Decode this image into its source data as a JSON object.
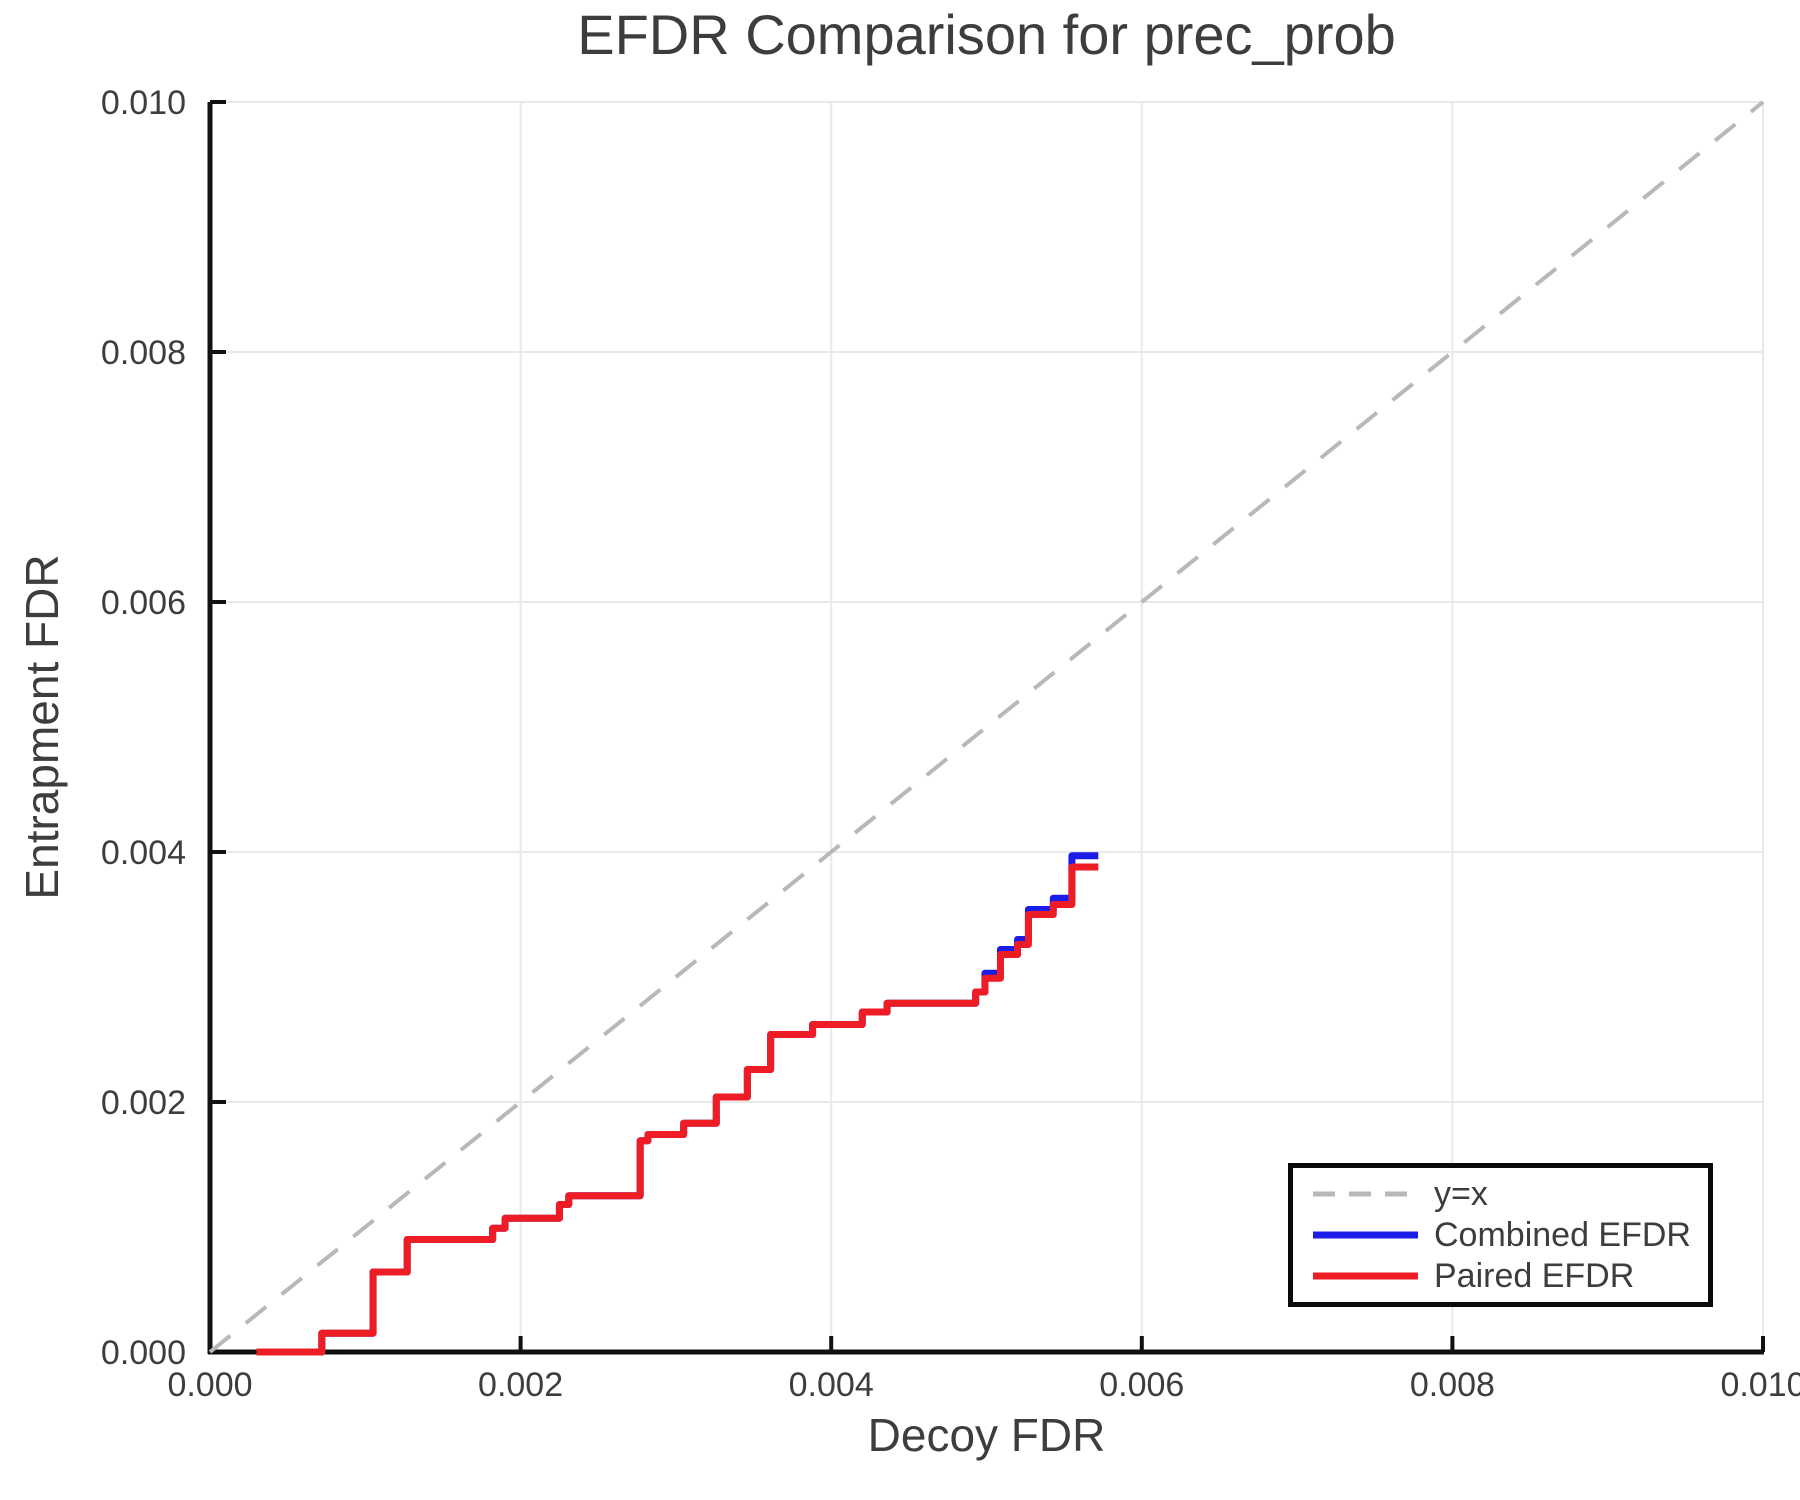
{
  "chart_data": {
    "type": "line",
    "title": "EFDR Comparison for prec_prob",
    "xlabel": "Decoy FDR",
    "ylabel": "Entrapment FDR",
    "xlim": [
      0.0,
      0.01
    ],
    "ylim": [
      0.0,
      0.01
    ],
    "grid": true,
    "xticks": {
      "values": [
        0.0,
        0.002,
        0.004,
        0.006,
        0.008,
        0.01
      ],
      "labels": [
        "0.000",
        "0.002",
        "0.004",
        "0.006",
        "0.008",
        "0.010"
      ]
    },
    "yticks": {
      "values": [
        0.0,
        0.002,
        0.004,
        0.006,
        0.008,
        0.01
      ],
      "labels": [
        "0.000",
        "0.002",
        "0.004",
        "0.006",
        "0.008",
        "0.010"
      ]
    },
    "colors": {
      "identity_line": "#b8b8b8",
      "combined": "#1c1ce8",
      "paired": "#ee1c24",
      "gridline": "#e9e9e9",
      "spine": "#111111",
      "text": "#3d3d3d"
    },
    "legend": {
      "position": "lower right",
      "items": [
        {
          "label": "y=x",
          "color": "#b8b8b8",
          "style": "dashed"
        },
        {
          "label": "Combined EFDR",
          "color": "#1c1ce8",
          "style": "solid"
        },
        {
          "label": "Paired EFDR",
          "color": "#ee1c24",
          "style": "solid"
        }
      ]
    },
    "series": [
      {
        "name": "y=x",
        "style": "dashed",
        "draw": "line",
        "color": "#b8b8b8",
        "width": 4,
        "points": [
          [
            0.0,
            0.0
          ],
          [
            0.01,
            0.01
          ]
        ]
      },
      {
        "name": "Combined EFDR",
        "style": "solid",
        "draw": "step",
        "color": "#1c1ce8",
        "width": 7,
        "points": [
          [
            0.0003,
            0.0
          ],
          [
            0.00072,
            0.00015
          ],
          [
            0.00105,
            0.00064
          ],
          [
            0.00127,
            0.0009
          ],
          [
            0.00182,
            0.00099
          ],
          [
            0.0019,
            0.00107
          ],
          [
            0.00225,
            0.00118
          ],
          [
            0.00231,
            0.00125
          ],
          [
            0.00277,
            0.00169
          ],
          [
            0.00282,
            0.00174
          ],
          [
            0.00305,
            0.00183
          ],
          [
            0.00326,
            0.00204
          ],
          [
            0.00346,
            0.00226
          ],
          [
            0.00361,
            0.00254
          ],
          [
            0.00388,
            0.00262
          ],
          [
            0.0042,
            0.00272
          ],
          [
            0.00436,
            0.00279
          ],
          [
            0.00493,
            0.00288
          ],
          [
            0.00499,
            0.00303
          ],
          [
            0.00509,
            0.00322
          ],
          [
            0.0052,
            0.0033
          ],
          [
            0.00527,
            0.00354
          ],
          [
            0.00543,
            0.00363
          ],
          [
            0.00555,
            0.00397
          ],
          [
            0.00572,
            0.00397
          ]
        ]
      },
      {
        "name": "Paired EFDR",
        "style": "solid",
        "draw": "step",
        "color": "#ee1c24",
        "width": 7,
        "points": [
          [
            0.0003,
            0.0
          ],
          [
            0.00072,
            0.00015
          ],
          [
            0.00105,
            0.00064
          ],
          [
            0.00127,
            0.0009
          ],
          [
            0.00182,
            0.00099
          ],
          [
            0.0019,
            0.00107
          ],
          [
            0.00225,
            0.00118
          ],
          [
            0.00231,
            0.00125
          ],
          [
            0.00277,
            0.00169
          ],
          [
            0.00282,
            0.00174
          ],
          [
            0.00305,
            0.00183
          ],
          [
            0.00326,
            0.00204
          ],
          [
            0.00346,
            0.00226
          ],
          [
            0.00361,
            0.00254
          ],
          [
            0.00388,
            0.00262
          ],
          [
            0.0042,
            0.00272
          ],
          [
            0.00436,
            0.00279
          ],
          [
            0.00493,
            0.00288
          ],
          [
            0.00499,
            0.00299
          ],
          [
            0.00509,
            0.00318
          ],
          [
            0.0052,
            0.00326
          ],
          [
            0.00527,
            0.0035
          ],
          [
            0.00543,
            0.00358
          ],
          [
            0.00555,
            0.00388
          ],
          [
            0.00572,
            0.00388
          ]
        ]
      }
    ]
  }
}
